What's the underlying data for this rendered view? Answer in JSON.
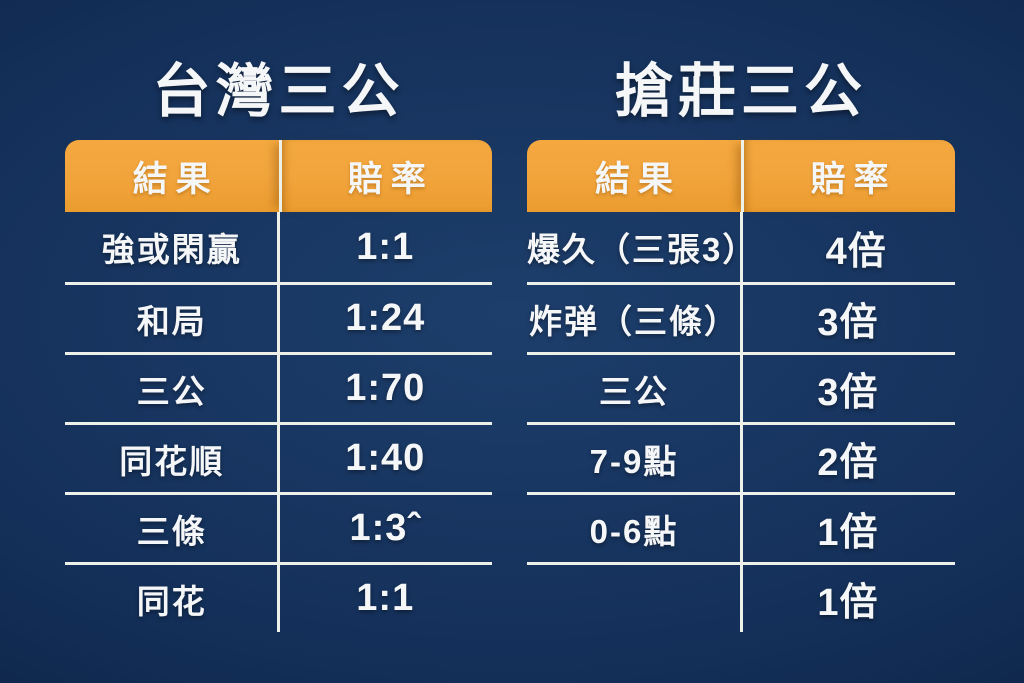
{
  "chart_data": [
    {
      "type": "table",
      "title": "台灣三公",
      "columns": [
        "結果",
        "賠率"
      ],
      "rows": [
        [
          "強或閑贏",
          "1:1"
        ],
        [
          "和局",
          "1:24"
        ],
        [
          "三公",
          "1:70"
        ],
        [
          "同花順",
          "1:40"
        ],
        [
          "三條",
          "1:3ˆ"
        ],
        [
          "同花",
          "1:1"
        ]
      ]
    },
    {
      "type": "table",
      "title": "搶莊三公",
      "columns": [
        "結果",
        "賠率"
      ],
      "rows": [
        [
          "爆久（三張3）",
          "4倍"
        ],
        [
          "炸弹（三條）",
          "3倍"
        ],
        [
          "三公",
          "3倍"
        ],
        [
          "7-9點",
          "2倍"
        ],
        [
          "0-6點",
          "1倍"
        ],
        [
          "",
          "1倍"
        ]
      ]
    }
  ],
  "colors": {
    "background_center": "#1d3e6b",
    "background_edge": "#0a1c3a",
    "header_orange": "#f2a43c",
    "grid_line": "#eef0ea",
    "text": "#f5f6f8"
  }
}
